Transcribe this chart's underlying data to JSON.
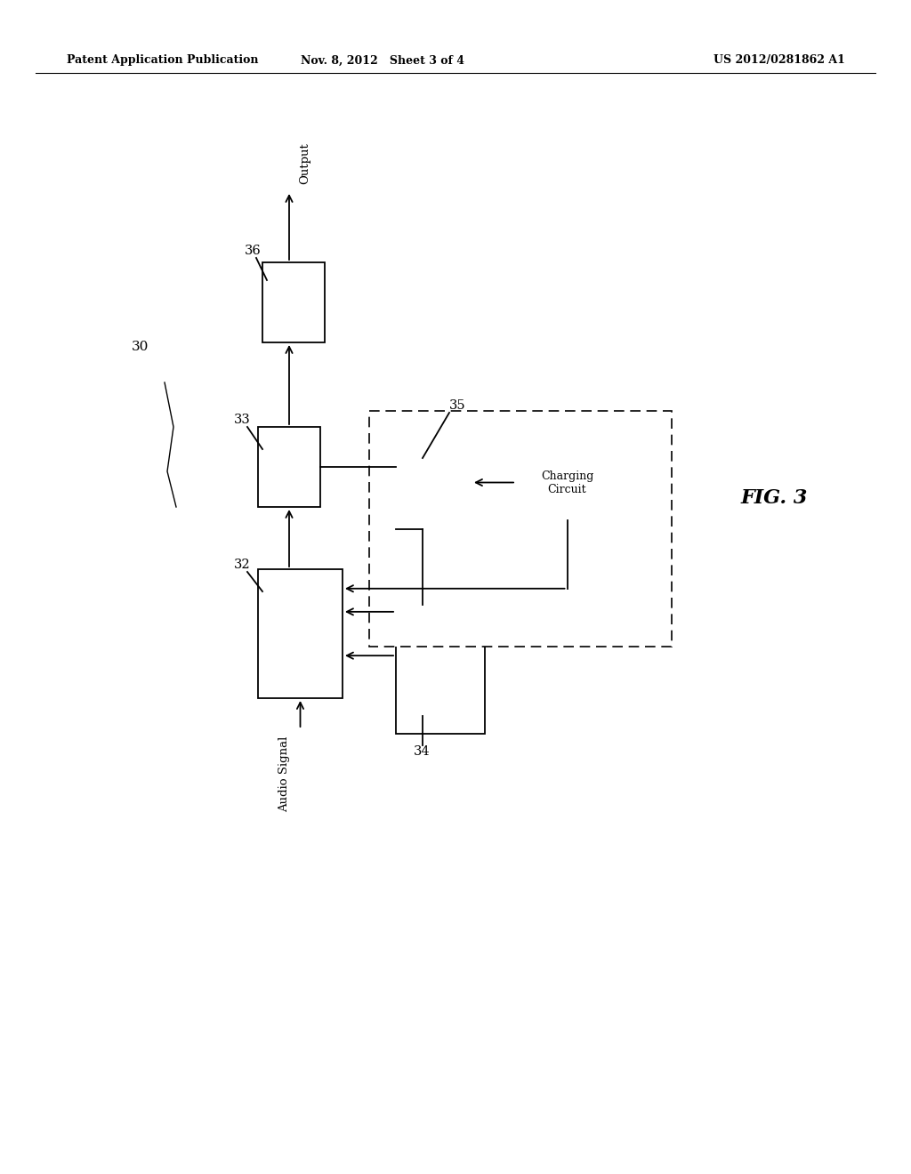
{
  "bg_color": "#ffffff",
  "header_left": "Patent Application Publication",
  "header_mid": "Nov. 8, 2012   Sheet 3 of 4",
  "header_right": "US 2012/0281862 A1",
  "fig_label": "FIG. 3",
  "label_30": "30",
  "label_32": "32",
  "label_33": "33",
  "label_34": "34",
  "label_35": "35",
  "label_36": "36",
  "text_output": "Output",
  "text_audio_signal": "Audio Signal",
  "text_charging_circuit": "Charging\nCircuit"
}
